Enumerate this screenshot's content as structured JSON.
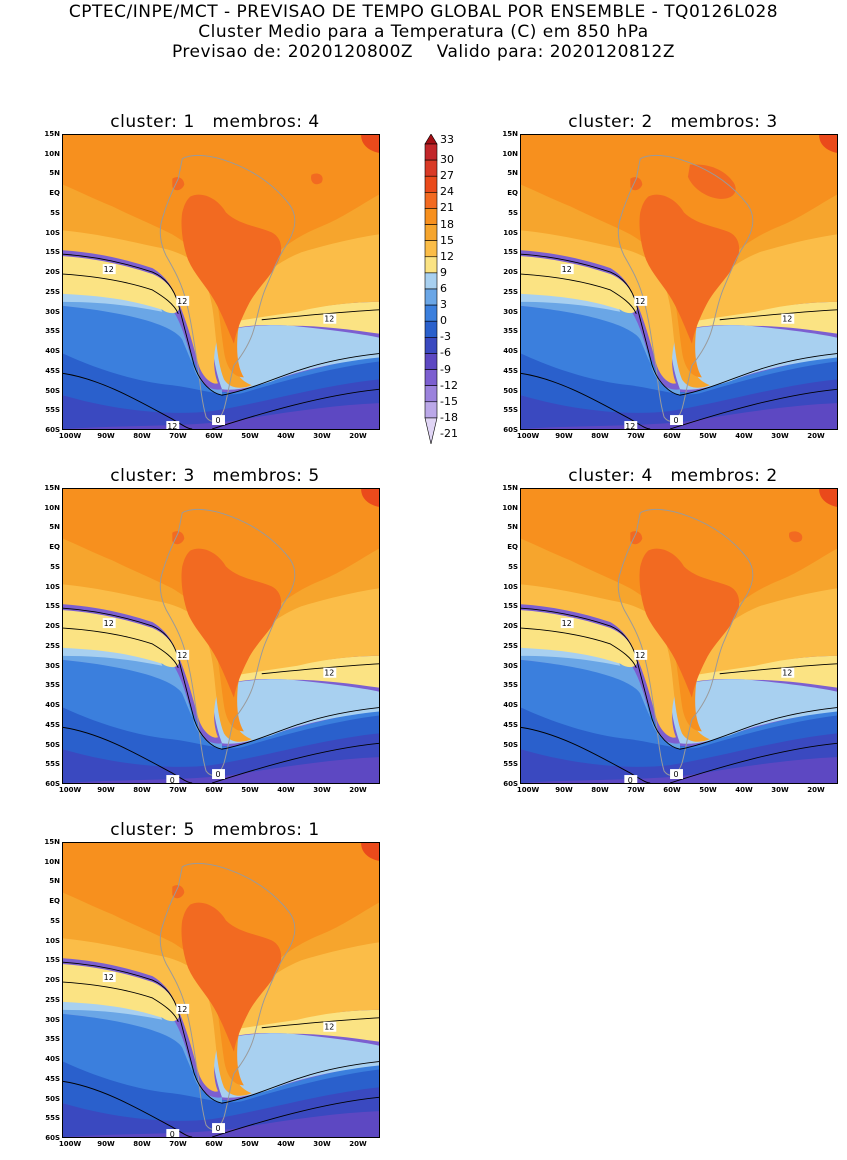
{
  "header": {
    "line1": "CPTEC/INPE/MCT - PREVISAO DE TEMPO GLOBAL POR ENSEMBLE - TQ0126L028",
    "line2": "Cluster Medio para a Temperatura (C) em 850 hPa",
    "line3_left": "Previsao de: 2020120800Z",
    "line3_right": "Valido para: 2020120812Z"
  },
  "lat_labels": [
    "15N",
    "10N",
    "5N",
    "EQ",
    "5S",
    "10S",
    "15S",
    "20S",
    "25S",
    "30S",
    "35S",
    "40S",
    "45S",
    "50S",
    "55S",
    "60S"
  ],
  "lon_labels": [
    "100W",
    "90W",
    "80W",
    "70W",
    "60W",
    "50W",
    "40W",
    "30W",
    "20W"
  ],
  "colorbar": {
    "levels": [
      "33",
      "30",
      "27",
      "24",
      "21",
      "18",
      "15",
      "12",
      "9",
      "6",
      "3",
      "0",
      "-3",
      "-6",
      "-9",
      "-12",
      "-15",
      "-18",
      "-21"
    ],
    "colors": {
      "c33": "#a30e14",
      "c30": "#c2262a",
      "c27": "#d93a26",
      "c24": "#ea4a1b",
      "c21": "#f26a21",
      "c18": "#f7901e",
      "c15": "#f6a52d",
      "c12": "#fbbd48",
      "c9": "#fbe383",
      "c6": "#a8d0f0",
      "c3": "#6aa6e6",
      "c0": "#3b7fdd",
      "cm3": "#2a60cc",
      "cm6": "#3a49c0",
      "cm9": "#5d48c2",
      "cm12": "#7c5fd0",
      "cm15": "#9b82dc",
      "cm18": "#bba8e8",
      "cm21": "#e0d5f5"
    }
  },
  "panels": [
    {
      "cluster_label": "cluster:",
      "cluster_num": "1",
      "membros_label": "membros:",
      "membros_num": "4",
      "contour_labels": [
        "12",
        "12",
        "12",
        "12",
        "0"
      ]
    },
    {
      "cluster_label": "cluster:",
      "cluster_num": "2",
      "membros_label": "membros:",
      "membros_num": "3",
      "contour_labels": [
        "12",
        "12",
        "12",
        "12",
        "0"
      ]
    },
    {
      "cluster_label": "cluster:",
      "cluster_num": "3",
      "membros_label": "membros:",
      "membros_num": "5",
      "contour_labels": [
        "12",
        "12",
        "12",
        "0",
        "0"
      ]
    },
    {
      "cluster_label": "cluster:",
      "cluster_num": "4",
      "membros_label": "membros:",
      "membros_num": "2",
      "contour_labels": [
        "12",
        "12",
        "12",
        "0",
        "0"
      ]
    },
    {
      "cluster_label": "cluster:",
      "cluster_num": "5",
      "membros_label": "membros:",
      "membros_num": "1",
      "contour_labels": [
        "12",
        "12",
        "12",
        "0",
        "0"
      ]
    }
  ]
}
